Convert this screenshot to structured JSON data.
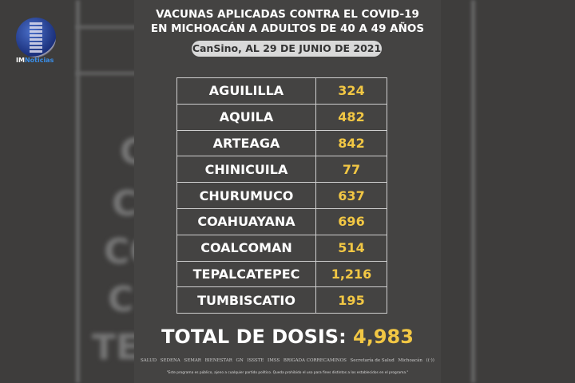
{
  "brand": {
    "prefix": "IM",
    "name": "Noticias"
  },
  "header": {
    "line1_normal": "VACUNAS APLICADAS ",
    "line1_bold": "CONTRA EL COVID-19",
    "line2": "EN MICHOACÁN A ADULTOS DE 40 A 49 AÑOS",
    "subtitle": "CanSino, AL 29 DE JUNIO DE 2021"
  },
  "table": [
    {
      "name": "AGUILILLA",
      "value": "324"
    },
    {
      "name": "AQUILA",
      "value": "482"
    },
    {
      "name": "ARTEAGA",
      "value": "842"
    },
    {
      "name": "CHINICUILA",
      "value": "77"
    },
    {
      "name": "CHURUMUCO",
      "value": "637"
    },
    {
      "name": "COAHUAYANA",
      "value": "696"
    },
    {
      "name": "COALCOMAN",
      "value": "514"
    },
    {
      "name": "TEPALCATEPEC",
      "value": "1,216"
    },
    {
      "name": "TUMBISCATIO",
      "value": "195"
    }
  ],
  "total": {
    "label": "TOTAL DE DOSIS: ",
    "value": "4,983"
  },
  "footer": {
    "logos": [
      "SALUD",
      "SEDENA",
      "SEMAR",
      "BIENESTAR",
      "GN",
      "ISSSTE",
      "IMSS",
      "BRIGADA CORRECAMINOS",
      "Secretaría de Salud",
      "Michoacán",
      "((·))"
    ],
    "note": "\"Este programa es público, ajeno a cualquier partido político. Queda prohibido el uso para fines distintos a los establecidos en el programa.\""
  },
  "colors": {
    "accent": "#f2c744",
    "background": "#444342"
  }
}
